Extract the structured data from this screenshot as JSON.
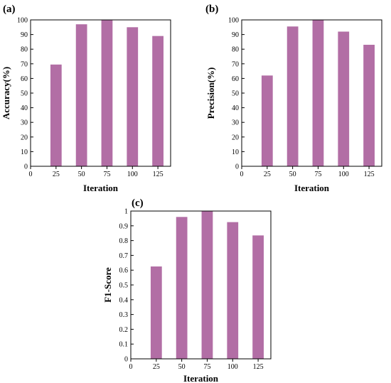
{
  "figure": {
    "bar_color": "#b26ea5"
  },
  "chart_data": [
    {
      "type": "bar",
      "panel": "(a)",
      "xlabel": "Iteration",
      "ylabel": "Accuracy(%)",
      "xlim": [
        0,
        137.5
      ],
      "ylim": [
        0,
        100
      ],
      "x_ticks": [
        0,
        25,
        50,
        75,
        100,
        125
      ],
      "y_ticks": [
        0,
        10,
        20,
        30,
        40,
        50,
        60,
        70,
        80,
        90,
        100
      ],
      "x_tick_labels": [
        "0",
        "25",
        "50",
        "75",
        "100",
        "125"
      ],
      "y_tick_labels": [
        "0",
        "10",
        "20",
        "30",
        "40",
        "50",
        "60",
        "70",
        "80",
        "90",
        "100"
      ],
      "categories": [
        25,
        50,
        75,
        100,
        125
      ],
      "values": [
        69.5,
        97,
        100,
        95,
        89
      ],
      "grid": false
    },
    {
      "type": "bar",
      "panel": "(b)",
      "xlabel": "Iteration",
      "ylabel": "Precision(%)",
      "xlim": [
        0,
        137.5
      ],
      "ylim": [
        0,
        100
      ],
      "x_ticks": [
        0,
        25,
        50,
        75,
        100,
        125
      ],
      "y_ticks": [
        0,
        10,
        20,
        30,
        40,
        50,
        60,
        70,
        80,
        90,
        100
      ],
      "x_tick_labels": [
        "0",
        "25",
        "50",
        "75",
        "100",
        "125"
      ],
      "y_tick_labels": [
        "0",
        "10",
        "20",
        "30",
        "40",
        "50",
        "60",
        "70",
        "80",
        "90",
        "100"
      ],
      "categories": [
        25,
        50,
        75,
        100,
        125
      ],
      "values": [
        62,
        95.5,
        100,
        92,
        83
      ],
      "grid": false
    },
    {
      "type": "bar",
      "panel": "(c)",
      "xlabel": "Iteration",
      "ylabel": "F1-Score",
      "xlim": [
        0,
        137.5
      ],
      "ylim": [
        0,
        1
      ],
      "x_ticks": [
        0,
        25,
        50,
        75,
        100,
        125
      ],
      "y_ticks": [
        0,
        0.1,
        0.2,
        0.3,
        0.4,
        0.5,
        0.6,
        0.7,
        0.8,
        0.9,
        1
      ],
      "x_tick_labels": [
        "0",
        "25",
        "50",
        "75",
        "100",
        "125"
      ],
      "y_tick_labels": [
        "0",
        "0.1",
        "0.2",
        "0.3",
        "0.4",
        "0.5",
        "0.6",
        "0.7",
        "0.8",
        "0.9",
        "1"
      ],
      "categories": [
        25,
        50,
        75,
        100,
        125
      ],
      "values": [
        0.625,
        0.96,
        1.0,
        0.925,
        0.835
      ],
      "grid": false
    }
  ]
}
